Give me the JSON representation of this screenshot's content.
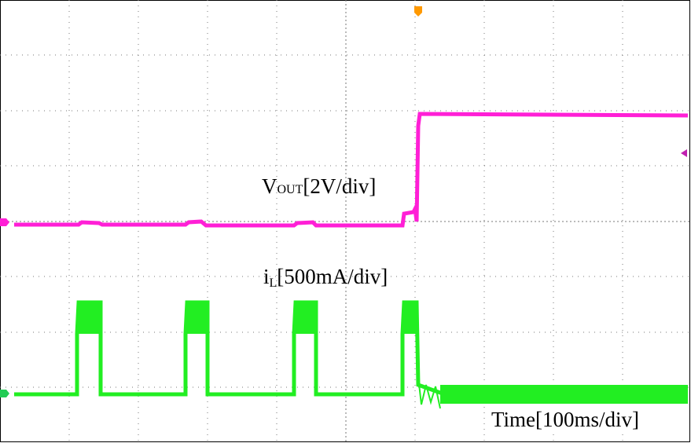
{
  "labels": {
    "vout": {
      "main": "V",
      "sub": "OUT",
      "unit": "[2V/div]"
    },
    "il": {
      "main": "i",
      "sub": "L",
      "unit": "[500mA/div]"
    },
    "time": "Time[100ms/div]"
  }
}
